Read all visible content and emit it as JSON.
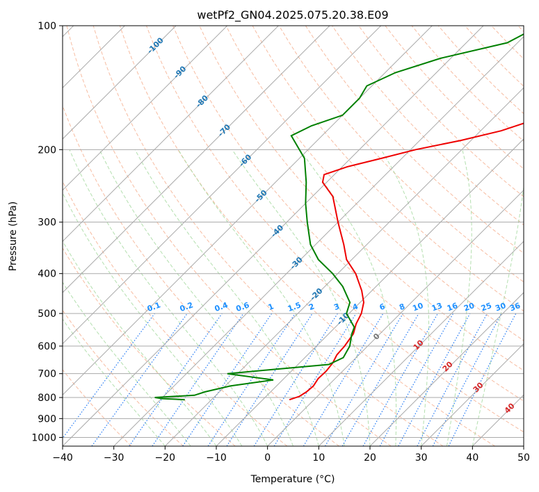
{
  "chart_data": {
    "type": "line",
    "subtype": "skew-t log-p",
    "title": "wetPf2_GN04.2025.075.20.38.E09",
    "xlabel": "Temperature (°C)",
    "ylabel": "Pressure (hPa)",
    "xlim": [
      -40,
      50
    ],
    "ylim": [
      1050,
      100
    ],
    "y_scale": "log",
    "x_ticks": [
      -40,
      -30,
      -20,
      -10,
      0,
      10,
      20,
      30,
      40,
      50
    ],
    "x_tick_labels": [
      "−40",
      "−30",
      "−20",
      "−10",
      "0",
      "10",
      "20",
      "30",
      "40",
      "50"
    ],
    "y_ticks": [
      100,
      200,
      300,
      400,
      500,
      600,
      700,
      800,
      900,
      1000
    ],
    "y_tick_labels": [
      "100",
      "200",
      "300",
      "400",
      "500",
      "600",
      "700",
      "800",
      "900",
      "1000"
    ],
    "grid": true,
    "colors": {
      "temperature": "#ee0000",
      "dewpoint": "#008000",
      "isotherm": "#aaaaaa",
      "dry_adiabat": "#f4a582",
      "moist_adiabat": "#a6d9a0",
      "mixing_ratio": "#1f77f4",
      "isotherm_label": "#1f77b4",
      "moist_label": "#d62728",
      "mixing_label": "#1e90ff"
    },
    "series": [
      {
        "role": "temperature",
        "color": "#ee0000",
        "points": [
          [
            -4.8,
            810
          ],
          [
            -3.5,
            795
          ],
          [
            -3.0,
            775
          ],
          [
            -2.8,
            750
          ],
          [
            -3.3,
            720
          ],
          [
            -3.2,
            690
          ],
          [
            -3.5,
            660
          ],
          [
            -4.3,
            630
          ],
          [
            -4.5,
            600
          ],
          [
            -5.2,
            560
          ],
          [
            -6.6,
            530
          ],
          [
            -7.6,
            500
          ],
          [
            -9.3,
            470
          ],
          [
            -12.0,
            440
          ],
          [
            -16.5,
            400
          ],
          [
            -21.0,
            370
          ],
          [
            -24.5,
            340
          ],
          [
            -30.0,
            300
          ],
          [
            -36.0,
            260
          ],
          [
            -40.8,
            240
          ],
          [
            -42.0,
            230
          ],
          [
            -39.0,
            220
          ],
          [
            -34.0,
            210
          ],
          [
            -29.0,
            200
          ],
          [
            -22.0,
            190
          ],
          [
            -16.0,
            180
          ],
          [
            -12.0,
            170
          ],
          [
            -9.0,
            160
          ],
          [
            -10.0,
            150
          ],
          [
            -10.5,
            140
          ],
          [
            -13.0,
            130
          ],
          [
            -14.0,
            120
          ],
          [
            -14.5,
            110
          ],
          [
            -15.5,
            100
          ]
        ]
      },
      {
        "role": "dewpoint",
        "color": "#008000",
        "points": [
          [
            -25.2,
            810
          ],
          [
            -29.8,
            805
          ],
          [
            -31.5,
            800
          ],
          [
            -24.2,
            790
          ],
          [
            -22.8,
            775
          ],
          [
            -19.0,
            750
          ],
          [
            -11.8,
            725
          ],
          [
            -22.0,
            700
          ],
          [
            -14.5,
            685
          ],
          [
            -4.0,
            665
          ],
          [
            -2.5,
            640
          ],
          [
            -3.5,
            600
          ],
          [
            -5.5,
            560
          ],
          [
            -6.3,
            540
          ],
          [
            -10.5,
            500
          ],
          [
            -12.0,
            470
          ],
          [
            -16.5,
            430
          ],
          [
            -21.0,
            400
          ],
          [
            -26.5,
            370
          ],
          [
            -31.0,
            340
          ],
          [
            -36.0,
            300
          ],
          [
            -40.0,
            270
          ],
          [
            -44.0,
            240
          ],
          [
            -49.0,
            210
          ],
          [
            -56.0,
            185
          ],
          [
            -54.0,
            175
          ],
          [
            -50.0,
            165
          ],
          [
            -50.0,
            150
          ],
          [
            -51.0,
            140
          ],
          [
            -48.0,
            130
          ],
          [
            -42.0,
            120
          ],
          [
            -32.0,
            110
          ],
          [
            -29.0,
            100
          ]
        ]
      }
    ],
    "isotherm_labels": [
      "-100",
      "-90",
      "-80",
      "-70",
      "-60",
      "-50",
      "-40",
      "-30",
      "-20",
      "-10",
      "0"
    ],
    "moist_adiabat_labels": [
      "10",
      "20",
      "30",
      "40"
    ],
    "mixing_ratio_labels": [
      "0.1",
      "0.2",
      "0.4",
      "0.6",
      "1",
      "1.5",
      "2",
      "3",
      "4",
      "6",
      "8",
      "10",
      "13",
      "16",
      "20",
      "25",
      "30",
      "36"
    ]
  }
}
